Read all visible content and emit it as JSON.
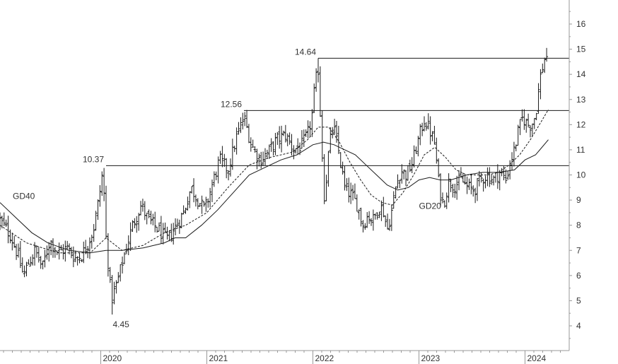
{
  "chart_data": {
    "type": "bar",
    "subtype": "ohlc-weekly-price",
    "title": "",
    "xlabel": "",
    "ylabel": "",
    "y_axis_position": "right",
    "ylim": [
      3,
      17
    ],
    "y_ticks": [
      4,
      5,
      6,
      7,
      8,
      9,
      10,
      11,
      12,
      13,
      14,
      15,
      16
    ],
    "x_ticks": [
      {
        "label": "2020",
        "t": 2020.0
      },
      {
        "label": "2021",
        "t": 2021.0
      },
      {
        "label": "2022",
        "t": 2022.0
      },
      {
        "label": "2023",
        "t": 2023.0
      },
      {
        "label": "2024",
        "t": 2024.0
      }
    ],
    "x_range": [
      2019.05,
      2024.35
    ],
    "grid": false,
    "price_path": [
      [
        2019.05,
        8.2
      ],
      [
        2019.15,
        7.6
      ],
      [
        2019.22,
        6.8
      ],
      [
        2019.27,
        6.0
      ],
      [
        2019.32,
        6.5
      ],
      [
        2019.38,
        7.0
      ],
      [
        2019.45,
        6.3
      ],
      [
        2019.52,
        7.4
      ],
      [
        2019.6,
        6.9
      ],
      [
        2019.68,
        7.1
      ],
      [
        2019.76,
        6.7
      ],
      [
        2019.82,
        6.8
      ],
      [
        2019.88,
        7.3
      ],
      [
        2019.93,
        7.8
      ],
      [
        2019.98,
        9.0
      ],
      [
        2020.02,
        10.2
      ],
      [
        2020.05,
        7.5
      ],
      [
        2020.1,
        5.0
      ],
      [
        2020.16,
        5.8
      ],
      [
        2020.22,
        6.8
      ],
      [
        2020.3,
        8.0
      ],
      [
        2020.38,
        8.8
      ],
      [
        2020.45,
        8.2
      ],
      [
        2020.55,
        7.8
      ],
      [
        2020.62,
        7.4
      ],
      [
        2020.7,
        7.9
      ],
      [
        2020.78,
        8.5
      ],
      [
        2020.85,
        9.5
      ],
      [
        2020.92,
        9.0
      ],
      [
        2020.98,
        8.6
      ],
      [
        2021.05,
        9.6
      ],
      [
        2021.12,
        10.6
      ],
      [
        2021.2,
        10.2
      ],
      [
        2021.28,
        11.5
      ],
      [
        2021.35,
        12.3
      ],
      [
        2021.42,
        11.2
      ],
      [
        2021.5,
        10.6
      ],
      [
        2021.58,
        10.9
      ],
      [
        2021.66,
        11.4
      ],
      [
        2021.74,
        11.6
      ],
      [
        2021.82,
        11.0
      ],
      [
        2021.9,
        11.2
      ],
      [
        2021.95,
        11.6
      ],
      [
        2021.99,
        12.3
      ],
      [
        2022.02,
        13.6
      ],
      [
        2022.05,
        14.2
      ],
      [
        2022.08,
        11.5
      ],
      [
        2022.11,
        9.0
      ],
      [
        2022.15,
        11.0
      ],
      [
        2022.19,
        12.0
      ],
      [
        2022.24,
        11.0
      ],
      [
        2022.3,
        9.5
      ],
      [
        2022.36,
        9.2
      ],
      [
        2022.42,
        8.8
      ],
      [
        2022.47,
        8.0
      ],
      [
        2022.52,
        8.4
      ],
      [
        2022.57,
        8.2
      ],
      [
        2022.63,
        8.8
      ],
      [
        2022.67,
        8.5
      ],
      [
        2022.7,
        7.8
      ],
      [
        2022.74,
        8.5
      ],
      [
        2022.78,
        9.5
      ],
      [
        2022.83,
        10.2
      ],
      [
        2022.88,
        10.0
      ],
      [
        2022.94,
        10.5
      ],
      [
        2023.0,
        11.5
      ],
      [
        2023.05,
        12.2
      ],
      [
        2023.1,
        11.8
      ],
      [
        2023.15,
        11.2
      ],
      [
        2023.19,
        9.5
      ],
      [
        2023.23,
        8.8
      ],
      [
        2023.28,
        9.7
      ],
      [
        2023.34,
        9.6
      ],
      [
        2023.4,
        9.8
      ],
      [
        2023.46,
        9.5
      ],
      [
        2023.52,
        9.4
      ],
      [
        2023.58,
        9.8
      ],
      [
        2023.64,
        10.0
      ],
      [
        2023.7,
        9.8
      ],
      [
        2023.76,
        10.1
      ],
      [
        2023.82,
        9.8
      ],
      [
        2023.86,
        10.5
      ],
      [
        2023.9,
        11.0
      ],
      [
        2023.94,
        11.8
      ],
      [
        2023.98,
        12.3
      ],
      [
        2024.02,
        12.0
      ],
      [
        2024.06,
        12.0
      ],
      [
        2024.1,
        12.4
      ],
      [
        2024.14,
        13.8
      ],
      [
        2024.17,
        14.4
      ],
      [
        2024.2,
        14.8
      ],
      [
        2024.22,
        14.7
      ]
    ],
    "moving_averages": [
      {
        "name": "GD20",
        "style": "dashed",
        "label_at": [
          2023.0,
          8.65
        ],
        "values": [
          [
            2019.05,
            8.0
          ],
          [
            2019.3,
            7.3
          ],
          [
            2019.6,
            6.9
          ],
          [
            2019.9,
            6.9
          ],
          [
            2020.05,
            7.5
          ],
          [
            2020.2,
            7.0
          ],
          [
            2020.4,
            7.2
          ],
          [
            2020.6,
            7.7
          ],
          [
            2020.8,
            8.0
          ],
          [
            2021.0,
            8.5
          ],
          [
            2021.2,
            9.5
          ],
          [
            2021.4,
            10.4
          ],
          [
            2021.6,
            10.7
          ],
          [
            2021.8,
            10.9
          ],
          [
            2021.95,
            11.4
          ],
          [
            2022.05,
            11.9
          ],
          [
            2022.15,
            11.9
          ],
          [
            2022.25,
            11.3
          ],
          [
            2022.35,
            10.5
          ],
          [
            2022.45,
            9.8
          ],
          [
            2022.55,
            9.2
          ],
          [
            2022.65,
            8.9
          ],
          [
            2022.75,
            8.8
          ],
          [
            2022.85,
            9.3
          ],
          [
            2022.95,
            10.0
          ],
          [
            2023.05,
            10.8
          ],
          [
            2023.15,
            11.1
          ],
          [
            2023.25,
            10.7
          ],
          [
            2023.35,
            10.2
          ],
          [
            2023.45,
            10.0
          ],
          [
            2023.55,
            10.0
          ],
          [
            2023.65,
            10.0
          ],
          [
            2023.75,
            10.1
          ],
          [
            2023.85,
            10.4
          ],
          [
            2023.95,
            10.8
          ],
          [
            2024.05,
            11.4
          ],
          [
            2024.15,
            12.1
          ],
          [
            2024.22,
            12.6
          ]
        ]
      },
      {
        "name": "GD40",
        "style": "solid",
        "label_at": [
          2019.05,
          9.05
        ],
        "values": [
          [
            2019.05,
            8.9
          ],
          [
            2019.2,
            8.3
          ],
          [
            2019.35,
            7.7
          ],
          [
            2019.5,
            7.3
          ],
          [
            2019.7,
            7.0
          ],
          [
            2019.9,
            6.9
          ],
          [
            2020.05,
            7.0
          ],
          [
            2020.2,
            7.0
          ],
          [
            2020.4,
            7.1
          ],
          [
            2020.6,
            7.3
          ],
          [
            2020.7,
            7.5
          ],
          [
            2020.8,
            7.5
          ],
          [
            2020.95,
            8.0
          ],
          [
            2021.1,
            8.6
          ],
          [
            2021.25,
            9.3
          ],
          [
            2021.4,
            10.0
          ],
          [
            2021.55,
            10.3
          ],
          [
            2021.7,
            10.6
          ],
          [
            2021.85,
            10.8
          ],
          [
            2022.0,
            11.2
          ],
          [
            2022.1,
            11.3
          ],
          [
            2022.2,
            11.2
          ],
          [
            2022.3,
            11.0
          ],
          [
            2022.4,
            10.8
          ],
          [
            2022.5,
            10.4
          ],
          [
            2022.6,
            10.0
          ],
          [
            2022.7,
            9.6
          ],
          [
            2022.8,
            9.4
          ],
          [
            2022.9,
            9.5
          ],
          [
            2023.0,
            9.8
          ],
          [
            2023.1,
            9.9
          ],
          [
            2023.2,
            9.8
          ],
          [
            2023.3,
            9.8
          ],
          [
            2023.45,
            10.0
          ],
          [
            2023.6,
            10.1
          ],
          [
            2023.75,
            10.1
          ],
          [
            2023.9,
            10.2
          ],
          [
            2024.0,
            10.6
          ],
          [
            2024.1,
            10.8
          ],
          [
            2024.22,
            11.4
          ]
        ]
      }
    ],
    "horizontal_levels": [
      {
        "value": 10.37,
        "label": "10.37",
        "from": 2020.05
      },
      {
        "value": 12.56,
        "label": "12.56",
        "from": 2021.35
      },
      {
        "value": 14.64,
        "label": "14.64",
        "from": 2022.05
      }
    ],
    "annotations": [
      {
        "label": "4.45",
        "value": 4.45,
        "t": 2020.1
      }
    ]
  },
  "colors": {
    "bars": "#1a1a1a",
    "lines": "#1a1a1a",
    "axis": "#999999",
    "text": "#333333",
    "background": "#ffffff"
  }
}
